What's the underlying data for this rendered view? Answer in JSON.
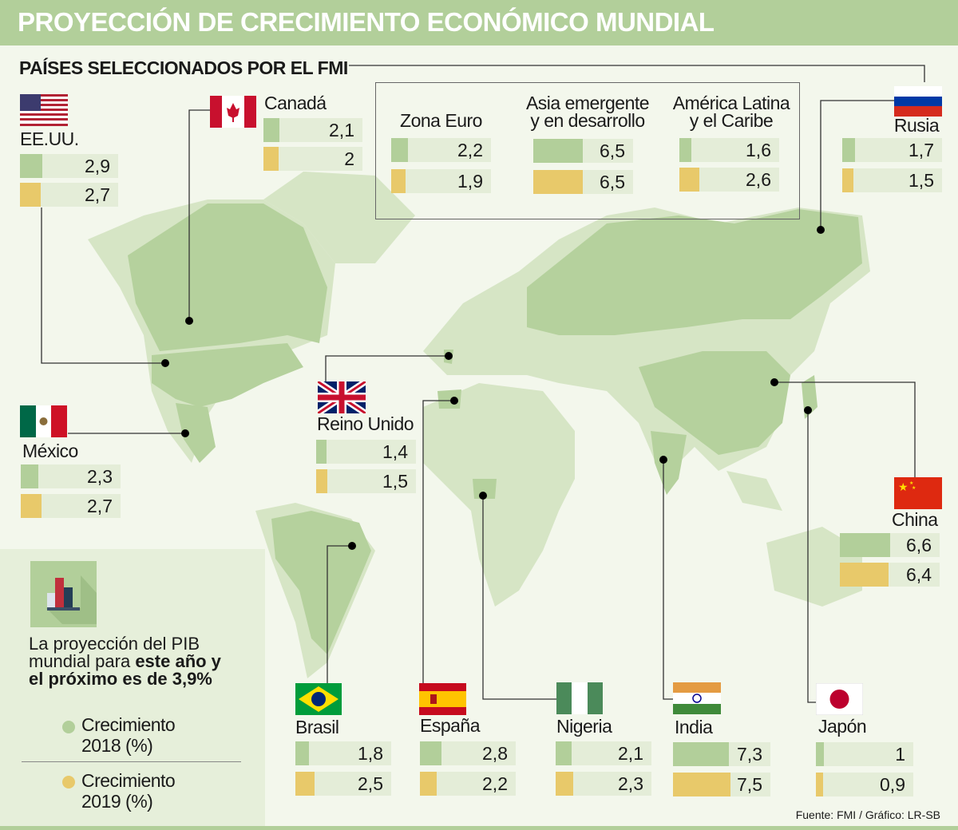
{
  "title": "PROYECCIÓN DE CRECIMIENTO ECONÓMICO MUNDIAL",
  "subtitle": "PAÍSES SELECCIONADOS POR EL FMI",
  "source": "Fuente: FMI / Gráfico: LR-SB",
  "colors": {
    "growth_2018": "#b2cf9a",
    "growth_2019": "#e8c96a"
  },
  "note": {
    "line1": "La proyección del PIB",
    "line2a": "mundial para ",
    "line2b": "este año y",
    "line3": "el próximo es de 3,9%"
  },
  "legend": {
    "item_2018_l1": "Crecimiento",
    "item_2018_l2": "2018 (%)",
    "item_2019_l1": "Crecimiento",
    "item_2019_l2": "2019 (%)"
  },
  "chart_data": {
    "type": "bar",
    "title": "PROYECCIÓN DE CRECIMIENTO ECONÓMICO MUNDIAL",
    "categories": [
      "EE.UU.",
      "Canadá",
      "Zona Euro",
      "Asia emergente y en desarrollo",
      "América Latina y el Caribe",
      "Rusia",
      "México",
      "Reino Unido",
      "China",
      "Brasil",
      "España",
      "Nigeria",
      "India",
      "Japón"
    ],
    "series": [
      {
        "name": "Crecimiento 2018 (%)",
        "values": [
          2.9,
          2.1,
          2.2,
          6.5,
          1.6,
          1.7,
          2.3,
          1.4,
          6.6,
          1.8,
          2.8,
          2.1,
          7.3,
          1
        ]
      },
      {
        "name": "Crecimiento 2019 (%)",
        "values": [
          2.7,
          2,
          1.9,
          6.5,
          2.6,
          1.5,
          2.7,
          1.5,
          6.4,
          2.5,
          2.2,
          2.3,
          7.5,
          0.9
        ]
      }
    ],
    "labels_2018": [
      "2,9",
      "2,1",
      "2,2",
      "6,5",
      "1,6",
      "1,7",
      "2,3",
      "1,4",
      "6,6",
      "1,8",
      "2,8",
      "2,1",
      "7,3",
      "1"
    ],
    "labels_2019": [
      "2,7",
      "2",
      "1,9",
      "6,5",
      "2,6",
      "1,5",
      "2,7",
      "1,5",
      "6,4",
      "2,5",
      "2,2",
      "2,3",
      "7,5",
      "0,9"
    ],
    "label_lines": [
      [
        "EE.UU."
      ],
      [
        "Canadá"
      ],
      [
        "Zona Euro"
      ],
      [
        "Asia emergente",
        "y en desarrollo"
      ],
      [
        "América Latina",
        "y el Caribe"
      ],
      [
        "Rusia"
      ],
      [
        "México"
      ],
      [
        "Reino Unido"
      ],
      [
        "China"
      ],
      [
        "Brasil"
      ],
      [
        "España"
      ],
      [
        "Nigeria"
      ],
      [
        "India"
      ],
      [
        "Japón"
      ]
    ],
    "legend_placement": "bottom-left"
  }
}
